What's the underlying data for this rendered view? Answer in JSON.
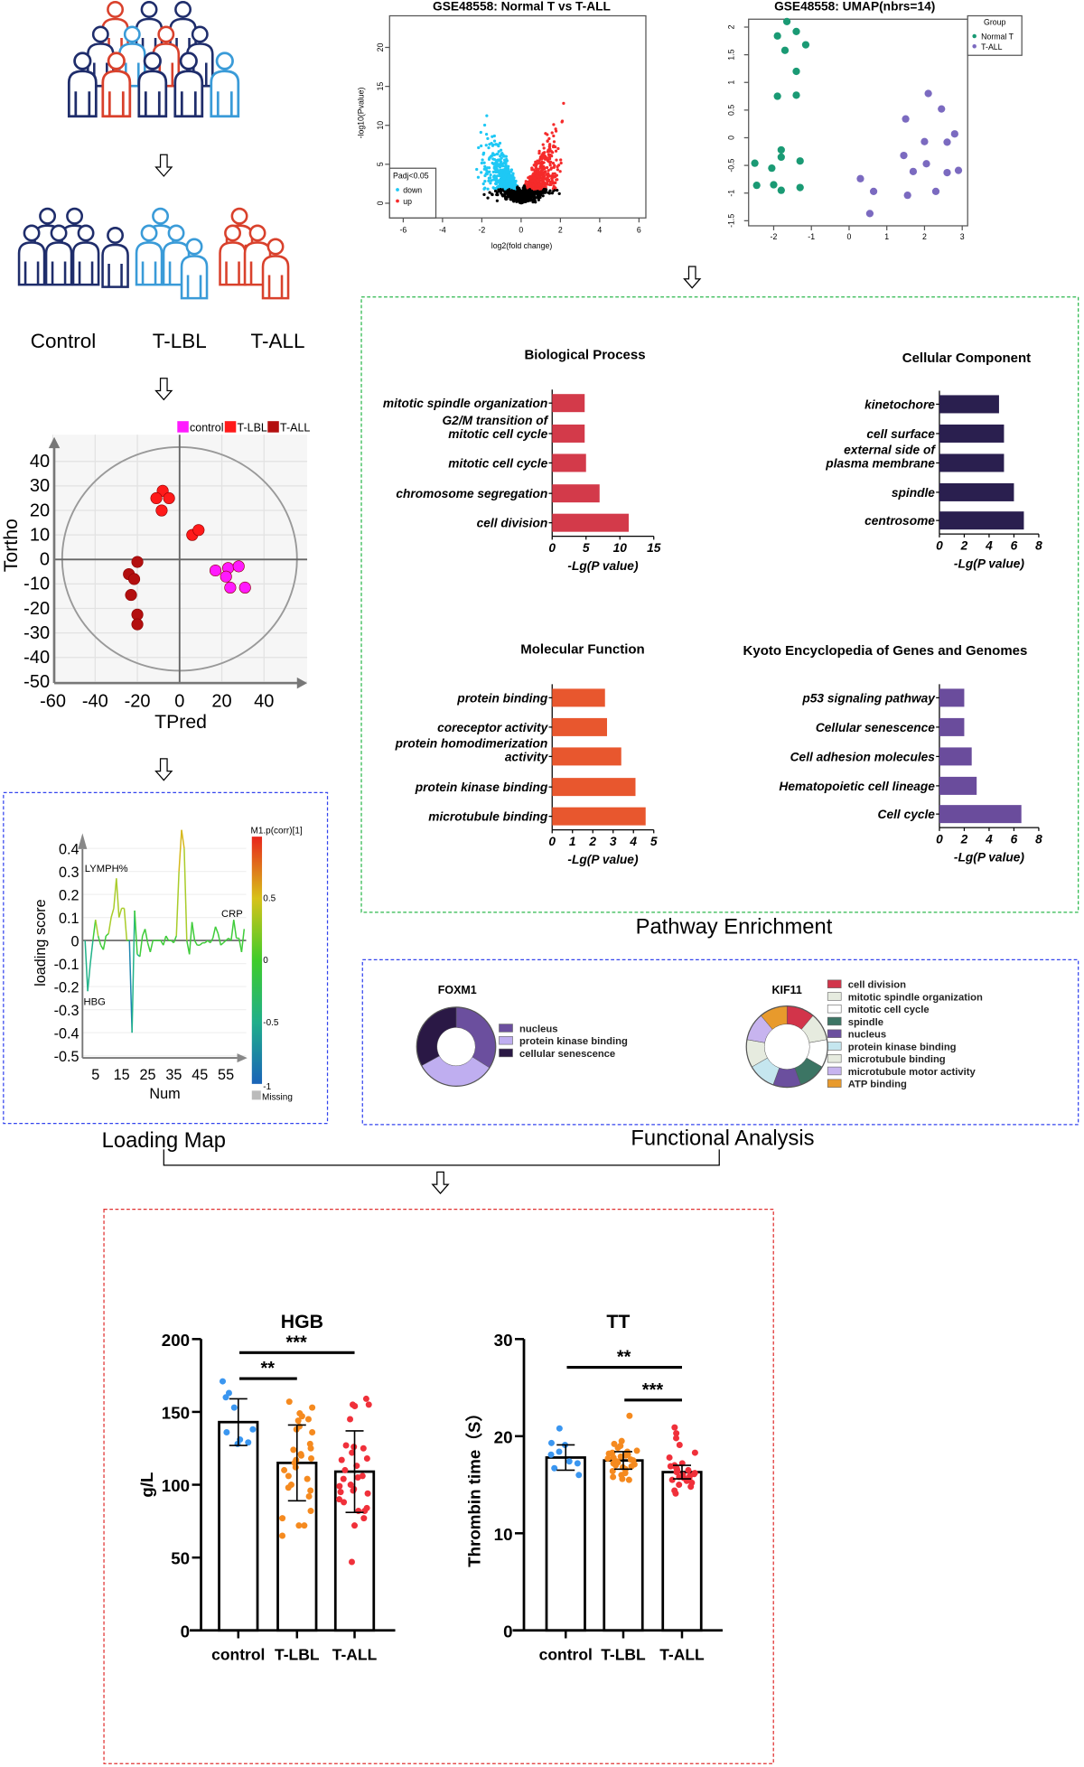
{
  "cohort": {
    "labels": [
      "Control",
      "T-LBL",
      "T-ALL"
    ],
    "colors": {
      "control": "#1f2d6b",
      "tlbl": "#3a9bd8",
      "tall": "#d9412c"
    }
  },
  "volcano": {
    "title": "GSE48558: Normal T vs T-ALL",
    "xlabel": "log2(fold change)",
    "ylabel": "-log10(Pvalue)",
    "xticks": [
      -6,
      -4,
      -2,
      0,
      2,
      4,
      6
    ],
    "yticks": [
      0,
      5,
      10,
      15,
      20
    ],
    "legend_title": "Padj<0.05",
    "legend": [
      "down",
      "up"
    ],
    "colors": {
      "down": "#1ec8f5",
      "up": "#f52a2a",
      "ns": "#000000"
    }
  },
  "umap": {
    "title": "GSE48558: UMAP(nbrs=14)",
    "xticks": [
      -2,
      -1,
      0,
      1,
      2,
      3
    ],
    "yticks": [
      -1.5,
      -1.0,
      -0.5,
      0.0,
      0.5,
      1.0,
      1.5,
      2.0
    ],
    "legend_title": "Group",
    "series": [
      {
        "name": "Normal T",
        "color": "#1a9a74",
        "points": [
          [
            -1.65,
            2.1
          ],
          [
            -1.4,
            1.92
          ],
          [
            -1.9,
            1.84
          ],
          [
            -1.7,
            1.58
          ],
          [
            -1.15,
            1.68
          ],
          [
            -1.4,
            1.2
          ],
          [
            -1.9,
            0.75
          ],
          [
            -1.4,
            0.77
          ],
          [
            -1.8,
            -0.22
          ],
          [
            -1.8,
            -0.35
          ],
          [
            -1.3,
            -0.42
          ],
          [
            -2.5,
            -0.46
          ],
          [
            -2.05,
            -0.55
          ],
          [
            -2.45,
            -0.86
          ],
          [
            -2.0,
            -0.85
          ],
          [
            -1.8,
            -0.95
          ],
          [
            -1.3,
            -0.9
          ]
        ]
      },
      {
        "name": "T-ALL",
        "color": "#7b6ac0",
        "points": [
          [
            2.1,
            0.8
          ],
          [
            2.45,
            0.52
          ],
          [
            1.5,
            0.34
          ],
          [
            2.8,
            0.07
          ],
          [
            2.0,
            -0.07
          ],
          [
            2.6,
            -0.08
          ],
          [
            1.45,
            -0.32
          ],
          [
            2.05,
            -0.47
          ],
          [
            1.7,
            -0.61
          ],
          [
            2.6,
            -0.63
          ],
          [
            2.9,
            -0.59
          ],
          [
            0.3,
            -0.74
          ],
          [
            0.65,
            -0.97
          ],
          [
            1.55,
            -1.04
          ],
          [
            2.3,
            -0.97
          ],
          [
            0.55,
            -1.37
          ]
        ]
      }
    ]
  },
  "opls": {
    "xlabel": "TPred",
    "ylabel": "Tortho",
    "xticks": [
      -60,
      -40,
      -20,
      0,
      20,
      40
    ],
    "yticks": [
      -50,
      -40,
      -30,
      -20,
      -10,
      0,
      10,
      20,
      30,
      40
    ],
    "series": [
      {
        "name": "control",
        "color": "#ff1aff",
        "points": [
          [
            17,
            -4.5
          ],
          [
            23,
            -3.5
          ],
          [
            28,
            -2.8
          ],
          [
            22,
            -7
          ],
          [
            24,
            -11.5
          ],
          [
            31,
            -11.5
          ]
        ]
      },
      {
        "name": "T-LBL",
        "color": "#ff1a1a",
        "points": [
          [
            -8,
            28
          ],
          [
            -11,
            25
          ],
          [
            -5,
            25
          ],
          [
            -8.5,
            20
          ],
          [
            6,
            10
          ],
          [
            9,
            12
          ]
        ]
      },
      {
        "name": "T-ALL",
        "color": "#b30f0f",
        "points": [
          [
            -20,
            -1
          ],
          [
            -24,
            -6
          ],
          [
            -21.5,
            -8
          ],
          [
            -23,
            -14.5
          ],
          [
            -20,
            -22.5
          ],
          [
            -20,
            -26.5
          ]
        ]
      }
    ]
  },
  "loading": {
    "xlabel": "Num",
    "ylabel": "loading score",
    "xticks": [
      5,
      15,
      25,
      35,
      45,
      55
    ],
    "yticks": [
      -0.5,
      -0.4,
      -0.3,
      -0.2,
      -0.1,
      0,
      0.1,
      0.2,
      0.3,
      0.4
    ],
    "values": [
      0,
      -0.22,
      -0.1,
      0,
      0.09,
      0.02,
      -0.02,
      -0.04,
      0.02,
      0.03,
      0.1,
      0.14,
      0.27,
      0.1,
      0.14,
      0.14,
      0,
      0,
      -0.4,
      0.13,
      -0.06,
      -0.07,
      0.02,
      0.05,
      -0.01,
      -0.05,
      0,
      0,
      0,
      0,
      -0.02,
      0.02,
      0,
      0,
      -0.01,
      0.02,
      0.3,
      0.48,
      0.4,
      0,
      -0.06,
      0.08,
      0,
      -0.02,
      -0.02,
      -0.01,
      -0.01,
      0,
      -0.01,
      0.01,
      0.06,
      0.03,
      -0.02,
      -0.01,
      0,
      0.01,
      0,
      0.09,
      0.01,
      0.01,
      -0.05,
      0.05
    ],
    "annotations": [
      "LYMPH%",
      "HBG",
      "CRP"
    ],
    "colorbar_title": "M1.p(corr)[1]",
    "colorbar_ticks": [
      "0.5",
      "0",
      "-0.5",
      "-1"
    ],
    "missing_label": "Missing",
    "panel_label": "Loading Map"
  },
  "enrichment": {
    "panel_label": "Pathway Enrichment",
    "xlabel": "-Lg(P value)",
    "panels": [
      {
        "title": "Biological Process",
        "color": "#d33a4a",
        "ticks": [
          0,
          5,
          10,
          15
        ],
        "terms": [
          [
            "mitotic spindle organization"
          ],
          [
            "G2/M transition of",
            "mitotic cell cycle"
          ],
          [
            "mitotic cell cycle"
          ],
          [
            "chromosome segregation"
          ],
          [
            "cell division"
          ]
        ],
        "values": [
          4.8,
          4.8,
          5.0,
          7.0,
          11.3
        ]
      },
      {
        "title": "Cellular Component",
        "color": "#2a1f4f",
        "ticks": [
          0,
          2,
          4,
          6,
          8
        ],
        "terms": [
          [
            "kinetochore"
          ],
          [
            "cell surface"
          ],
          [
            "external side of",
            "plasma membrane"
          ],
          [
            "spindle"
          ],
          [
            "centrosome"
          ]
        ],
        "values": [
          4.8,
          5.2,
          5.2,
          6.0,
          6.8
        ]
      },
      {
        "title": "Molecular Function",
        "color": "#e8572e",
        "ticks": [
          0,
          1,
          2,
          3,
          4,
          5
        ],
        "terms": [
          [
            "protein binding"
          ],
          [
            "coreceptor activity"
          ],
          [
            "protein homodimerization",
            "activity"
          ],
          [
            "protein kinase binding"
          ],
          [
            "microtubule binding"
          ]
        ],
        "values": [
          2.6,
          2.7,
          3.4,
          4.1,
          4.6
        ]
      },
      {
        "title": "Kyoto Encyclopedia of Genes and Genomes",
        "color": "#6a4c9c",
        "ticks": [
          0,
          2,
          4,
          6,
          8
        ],
        "terms": [
          [
            "p53 signaling pathway"
          ],
          [
            "Cellular senescence"
          ],
          [
            "Cell adhesion molecules"
          ],
          [
            "Hematopoietic cell lineage"
          ],
          [
            "Cell cycle"
          ]
        ],
        "values": [
          2.0,
          2.0,
          2.6,
          3.0,
          6.6
        ]
      }
    ]
  },
  "functional": {
    "panel_label": "Functional Analysis",
    "donuts": [
      {
        "gene": "FOXM1",
        "slices": [
          {
            "label": "nucleus",
            "value": 34,
            "color": "#6b4f9e"
          },
          {
            "label": "protein kinase binding",
            "value": 33,
            "color": "#bfaef0"
          },
          {
            "label": "cellular senescence",
            "value": 33,
            "color": "#2a1845"
          }
        ]
      },
      {
        "gene": "KIF11",
        "slices": [
          {
            "label": "cell division",
            "value": 1,
            "color": "#d2344a"
          },
          {
            "label": "mitotic spindle organization",
            "value": 1,
            "color": "#e6ebdf"
          },
          {
            "label": "mitotic cell cycle",
            "value": 1,
            "color": "#ffffff"
          },
          {
            "label": "spindle",
            "value": 1,
            "color": "#3c7564"
          },
          {
            "label": "nucleus",
            "value": 1,
            "color": "#6b4f9e"
          },
          {
            "label": "protein kinase binding",
            "value": 1,
            "color": "#c5e6ef"
          },
          {
            "label": "microtubule binding",
            "value": 1,
            "color": "#e6ebdf"
          },
          {
            "label": "microtubule motor activity",
            "value": 1,
            "color": "#c7b4ef"
          },
          {
            "label": "ATP binding",
            "value": 1,
            "color": "#e89a2c"
          }
        ]
      }
    ]
  },
  "chart_data": [
    {
      "type": "bar",
      "title": "HGB",
      "ylabel": "g/L",
      "ylim": [
        0,
        200
      ],
      "yticks": [
        0,
        50,
        100,
        150,
        200
      ],
      "categories": [
        "control",
        "T-LBL",
        "T-ALL"
      ],
      "values": [
        143,
        115,
        109
      ],
      "sd": [
        16,
        26,
        28
      ],
      "colors": [
        "#3a96f0",
        "#f58a1f",
        "#f0303a"
      ],
      "points": [
        [
          171,
          163,
          160,
          153,
          138,
          136,
          131,
          128,
          129
        ],
        [
          157,
          153,
          149,
          147,
          145,
          144,
          140,
          138,
          136,
          128,
          125,
          124,
          121,
          120,
          118,
          117,
          115,
          112,
          110,
          106,
          104,
          100,
          98,
          96,
          92,
          82,
          77,
          72,
          72,
          65
        ],
        [
          159,
          155,
          155,
          154,
          145,
          127,
          126,
          125,
          122,
          118,
          117,
          113,
          110,
          106,
          105,
          104,
          100,
          99,
          97,
          96,
          95,
          94,
          90,
          88,
          84,
          82,
          82,
          77,
          72,
          47
        ]
      ],
      "significance": [
        {
          "pair": [
            "control",
            "T-LBL"
          ],
          "label": "**"
        },
        {
          "pair": [
            "control",
            "T-ALL"
          ],
          "label": "***"
        }
      ]
    },
    {
      "type": "bar",
      "title": "TT",
      "ylabel": "Thrombin time（S）",
      "ylim": [
        0,
        30
      ],
      "yticks": [
        0,
        10,
        20,
        30
      ],
      "categories": [
        "control",
        "T-LBL",
        "T-ALL"
      ],
      "values": [
        17.8,
        17.5,
        16.3
      ],
      "sd": [
        1.3,
        0.9,
        0.7
      ],
      "colors": [
        "#3a96f0",
        "#f58a1f",
        "#f0303a"
      ],
      "points": [
        [
          20.8,
          19.3,
          19.1,
          18.4,
          18.1,
          17.4,
          17.2,
          16.7,
          16
        ],
        [
          22.1,
          19.5,
          19.2,
          19,
          18.8,
          18.5,
          18.4,
          18.3,
          18.2,
          18.1,
          18,
          17.9,
          17.8,
          17.7,
          17.6,
          17.5,
          17.4,
          17.3,
          17.2,
          17.1,
          17,
          16.9,
          16.8,
          16.6,
          16.4,
          16.2,
          16,
          15.8,
          15.6,
          15.5
        ],
        [
          20.9,
          20.3,
          19.8,
          19.1,
          18.3,
          17.8,
          17.2,
          17.0,
          16.9,
          16.8,
          16.7,
          16.6,
          16.5,
          16.4,
          16.3,
          16.2,
          16.1,
          16.0,
          15.9,
          15.8,
          15.7,
          15.6,
          15.5,
          15.4,
          15.2,
          15.0,
          14.8,
          14.4,
          14.1
        ]
      ],
      "significance": [
        {
          "pair": [
            "control",
            "T-ALL"
          ],
          "label": "**"
        },
        {
          "pair": [
            "T-LBL",
            "T-ALL"
          ],
          "label": "***"
        }
      ]
    }
  ]
}
